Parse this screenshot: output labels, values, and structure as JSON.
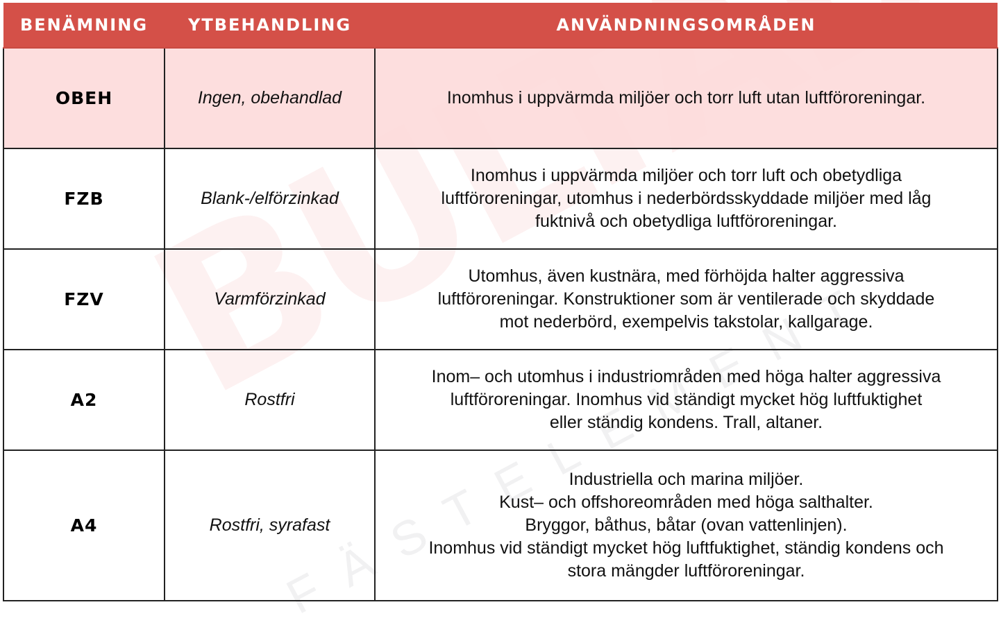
{
  "watermark": {
    "logo": "BULTAB",
    "tagline": "FÄSTELEMENT"
  },
  "colors": {
    "header_bg": "#d45048",
    "highlight_row": "#fddada"
  },
  "table": {
    "headers": [
      "BENÄMNING",
      "YTBEHANDLING",
      "ANVÄNDNINGSOMRÅDEN"
    ],
    "rows": [
      {
        "name": "OBEH",
        "surface": "Ingen, obehandlad",
        "use": "Inomhus i uppvärmda miljöer och torr luft utan luftföroreningar."
      },
      {
        "name": "FZB",
        "surface": "Blank-/elförzinkad",
        "use": "Inomhus i uppvärmda miljöer och torr luft och obetydliga\nluftföroreningar, utomhus i nederbördsskyddade miljöer med låg\nfuktnivå och obetydliga luftföroreningar."
      },
      {
        "name": "FZV",
        "surface": "Varmförzinkad",
        "use": "Utomhus, även kustnära, med förhöjda halter aggressiva\nluftföroreningar. Konstruktioner som är ventilerade och skyddade\nmot nederbörd, exempelvis takstolar, kallgarage."
      },
      {
        "name": "A2",
        "surface": "Rostfri",
        "use": "Inom– och utomhus i industriområden med höga halter aggressiva\nluftföroreningar. Inomhus vid ständigt mycket hög luftfuktighet\neller ständig kondens. Trall, altaner."
      },
      {
        "name": "A4",
        "surface": "Rostfri, syrafast",
        "use": "Industriella och marina miljöer.\nKust– och offshoreområden med höga salthalter.\nBryggor, båthus, båtar (ovan vattenlinjen).\nInomhus vid ständigt mycket hög luftfuktighet, ständig kondens och\nstora mängder luftföroreningar."
      }
    ]
  }
}
